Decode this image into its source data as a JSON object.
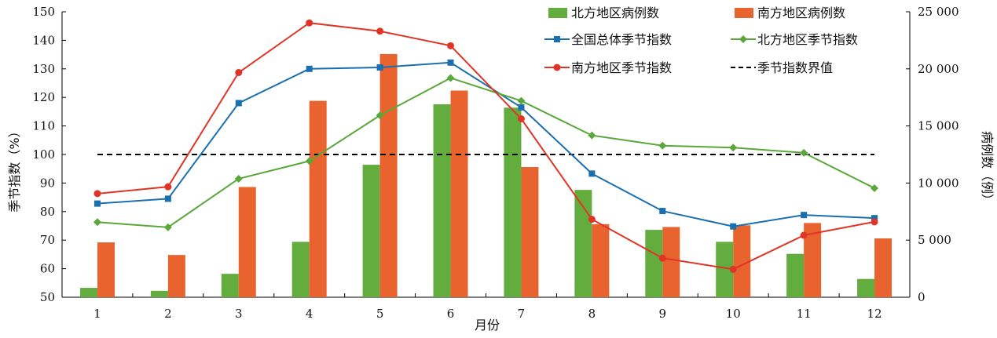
{
  "chart_data": {
    "type": "bar+line",
    "categories": [
      "1",
      "2",
      "3",
      "4",
      "5",
      "6",
      "7",
      "8",
      "9",
      "10",
      "11",
      "12"
    ],
    "xlabel": "月份",
    "ylabel_left": "季节指数（%）",
    "ylabel_right": "病例数（例）",
    "ylim_left": [
      50,
      150
    ],
    "yticks_left": [
      "50",
      "60",
      "70",
      "80",
      "90",
      "100",
      "110",
      "120",
      "130",
      "140",
      "150"
    ],
    "ylim_right": [
      0,
      25000
    ],
    "yticks_right": [
      "0",
      "5 000",
      "10 000",
      "15 000",
      "20 000",
      "25 000"
    ],
    "bar_series": [
      {
        "name": "北方地区病例数",
        "color": "#62ad3e",
        "values": [
          820,
          560,
          2050,
          4850,
          11600,
          16900,
          16600,
          9400,
          5900,
          4850,
          3800,
          1600
        ]
      },
      {
        "name": "南方地区病例数",
        "color": "#e8632e",
        "values": [
          4800,
          3700,
          9650,
          17200,
          21300,
          18100,
          11400,
          6400,
          6150,
          6300,
          6500,
          5150
        ]
      }
    ],
    "line_series": [
      {
        "name": "全国总体季节指数",
        "color": "#1a6fb0",
        "marker": "square",
        "values": [
          82.8,
          84.5,
          118,
          130,
          130.5,
          132.2,
          116.5,
          93.3,
          80.2,
          74.8,
          78.8,
          77.7
        ]
      },
      {
        "name": "北方地区季节指数",
        "color": "#5aa83a",
        "marker": "diamond",
        "values": [
          76.3,
          74.5,
          91.5,
          97.7,
          113.7,
          126.8,
          118.8,
          106.7,
          103.1,
          102.4,
          100.6,
          88.2
        ]
      },
      {
        "name": "南方地区季节指数",
        "color": "#e03526",
        "marker": "circle",
        "values": [
          86.3,
          88.7,
          128.7,
          146.1,
          143.2,
          138.1,
          112.5,
          77.3,
          63.7,
          59.8,
          71.7,
          76.4
        ]
      }
    ],
    "threshold": {
      "name": "季节指数界值",
      "value": 100,
      "color": "#000000"
    },
    "legend_position": "top-right"
  }
}
